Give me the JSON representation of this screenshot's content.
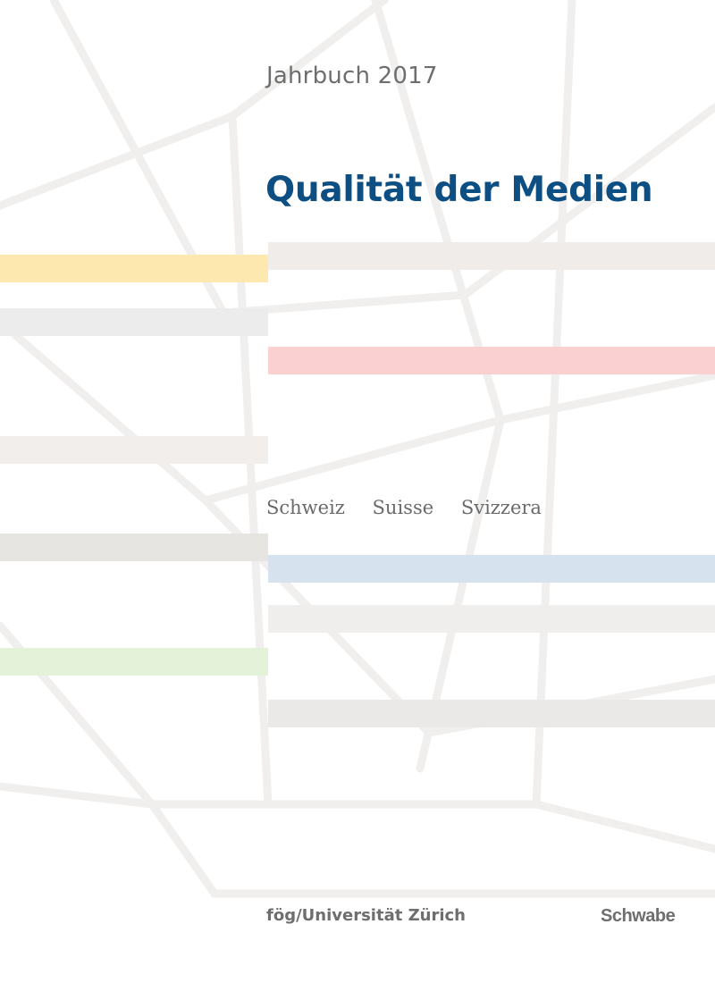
{
  "cover": {
    "yearbook": "Jahrbuch 2017",
    "title": "Qualität der Medien",
    "languages": [
      "Schweiz",
      "Suisse",
      "Svizzera"
    ],
    "institution": "fög/Universität Zürich",
    "publisher": "Schwabe"
  },
  "colors": {
    "title": "#0d4f82",
    "text_grey": "#6e6e6e",
    "band_yellow": "#fde9b0",
    "band_pink": "#fbd0d0",
    "band_blue": "#d6e3ee",
    "band_green": "#e4f2da",
    "band_grey": "#ececec",
    "band_warm_grey": "#f1eeec"
  }
}
